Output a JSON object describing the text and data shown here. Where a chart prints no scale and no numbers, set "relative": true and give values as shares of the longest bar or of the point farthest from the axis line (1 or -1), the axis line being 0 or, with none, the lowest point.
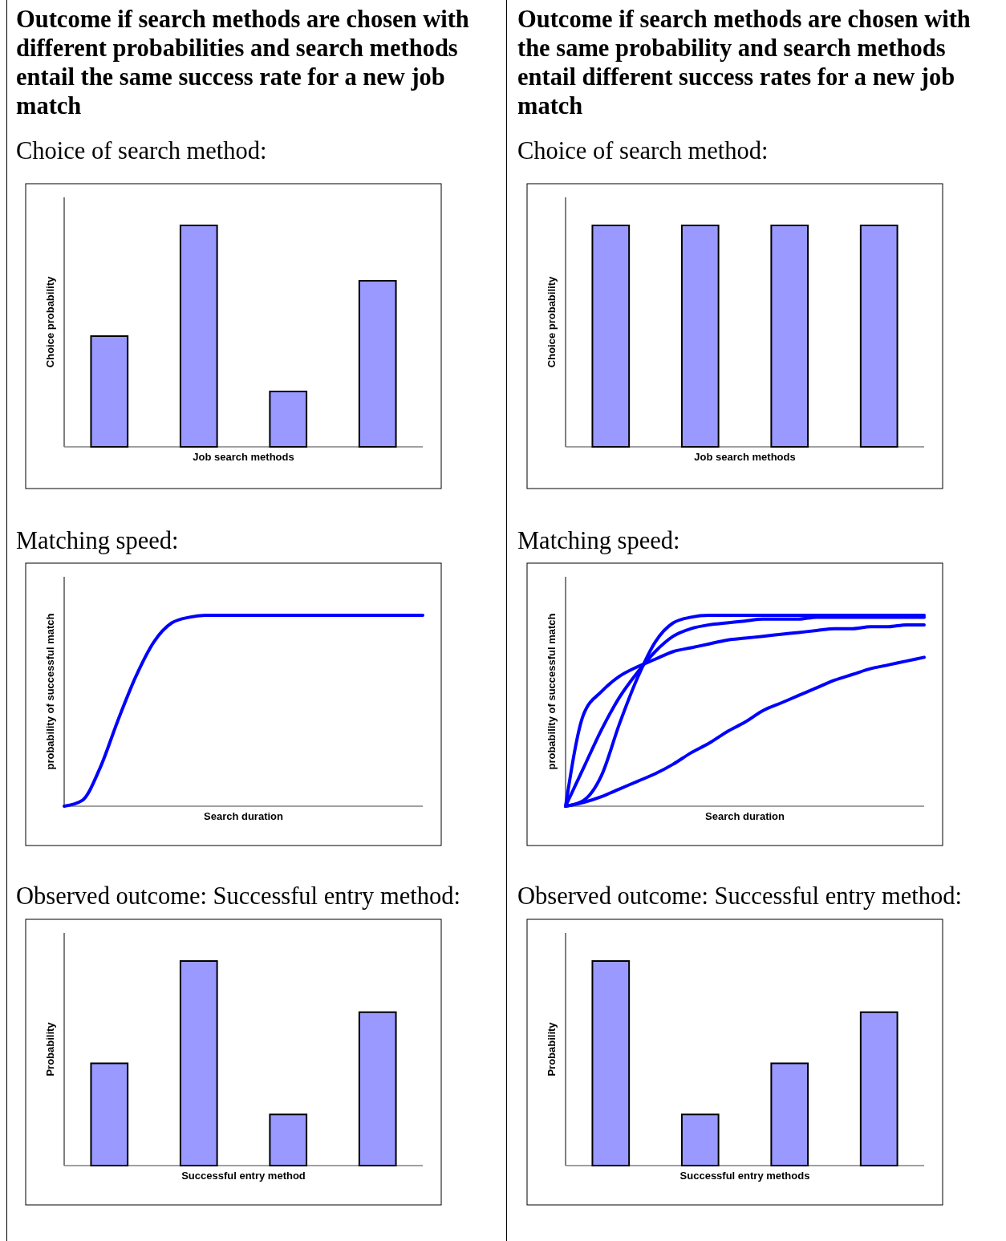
{
  "chart_data": [
    {
      "type": "bar",
      "title": "Outcome if search methods are chosen with different probabilities and search methods entail the same success rate for a new job match",
      "subtitle": "Choice of search method:",
      "xlabel": "Job search methods",
      "ylabel": "Choice probability",
      "relative": true,
      "categories": [
        null,
        null,
        null,
        null
      ],
      "values": [
        0.5,
        1,
        0.25,
        0.75
      ],
      "color": "#9999ff"
    },
    {
      "type": "bar",
      "title": "Outcome if search methods are chosen with the same probability and search methods entail different success rates for a new job match",
      "subtitle": "Choice of search method:",
      "xlabel": "Job search methods",
      "ylabel": "Choice probability",
      "relative": true,
      "categories": [
        null,
        null,
        null,
        null
      ],
      "values": [
        1,
        1,
        1,
        1
      ],
      "color": "#9999ff"
    },
    {
      "type": "line",
      "title": "Matching speed:",
      "xlabel": "Search duration",
      "ylabel": "probability of successful match",
      "relative": true,
      "categories": [
        null,
        null,
        null,
        null,
        null,
        null,
        null,
        null,
        null,
        null,
        null,
        null,
        null,
        null,
        null,
        null,
        null,
        null,
        null,
        null,
        null
      ],
      "series": [
        {
          "color": "#0000ff",
          "values": [
            0,
            0.03,
            0.2,
            0.45,
            0.68,
            0.86,
            0.96,
            0.99,
            1,
            1,
            1,
            1,
            1,
            1,
            1,
            1,
            1,
            1,
            1,
            1,
            1
          ]
        }
      ]
    },
    {
      "type": "line",
      "title": "Matching speed:",
      "xlabel": "Search duration",
      "ylabel": "probability of successful match",
      "relative": true,
      "categories": [
        null,
        null,
        null,
        null,
        null,
        null,
        null,
        null,
        null,
        null,
        null,
        null,
        null,
        null,
        null,
        null,
        null,
        null,
        null,
        null,
        null
      ],
      "series": [
        {
          "color": "#0000ff",
          "values": [
            0,
            0.48,
            0.6,
            0.68,
            0.73,
            0.77,
            0.81,
            0.83,
            0.85,
            0.87,
            0.88,
            0.89,
            0.9,
            0.91,
            0.92,
            0.93,
            0.93,
            0.94,
            0.94,
            0.95,
            0.95
          ]
        },
        {
          "color": "#0000ff",
          "values": [
            0,
            0.2,
            0.4,
            0.57,
            0.7,
            0.81,
            0.89,
            0.93,
            0.95,
            0.96,
            0.97,
            0.98,
            0.98,
            0.98,
            0.99,
            0.99,
            0.99,
            0.99,
            0.99,
            0.99,
            0.99
          ]
        },
        {
          "color": "#0000ff",
          "values": [
            0,
            0.03,
            0.16,
            0.43,
            0.67,
            0.86,
            0.96,
            0.99,
            1,
            1,
            1,
            1,
            1,
            1,
            1,
            1,
            1,
            1,
            1,
            1,
            1
          ]
        },
        {
          "color": "#0000ff",
          "values": [
            0,
            0.02,
            0.05,
            0.09,
            0.13,
            0.17,
            0.22,
            0.28,
            0.33,
            0.39,
            0.44,
            0.5,
            0.54,
            0.58,
            0.62,
            0.66,
            0.69,
            0.72,
            0.74,
            0.76,
            0.78
          ]
        }
      ]
    },
    {
      "type": "bar",
      "title": "Observed outcome: Successful entry method:",
      "xlabel": "Successful entry method",
      "ylabel": "Probability",
      "relative": true,
      "categories": [
        null,
        null,
        null,
        null
      ],
      "values": [
        0.5,
        1,
        0.25,
        0.75
      ],
      "color": "#9999ff"
    },
    {
      "type": "bar",
      "title": "Observed outcome: Successful entry method:",
      "xlabel": "Successful entry methods",
      "ylabel": "Probability",
      "relative": true,
      "categories": [
        null,
        null,
        null,
        null
      ],
      "values": [
        1,
        0.25,
        0.5,
        0.75
      ],
      "color": "#9999ff"
    }
  ]
}
